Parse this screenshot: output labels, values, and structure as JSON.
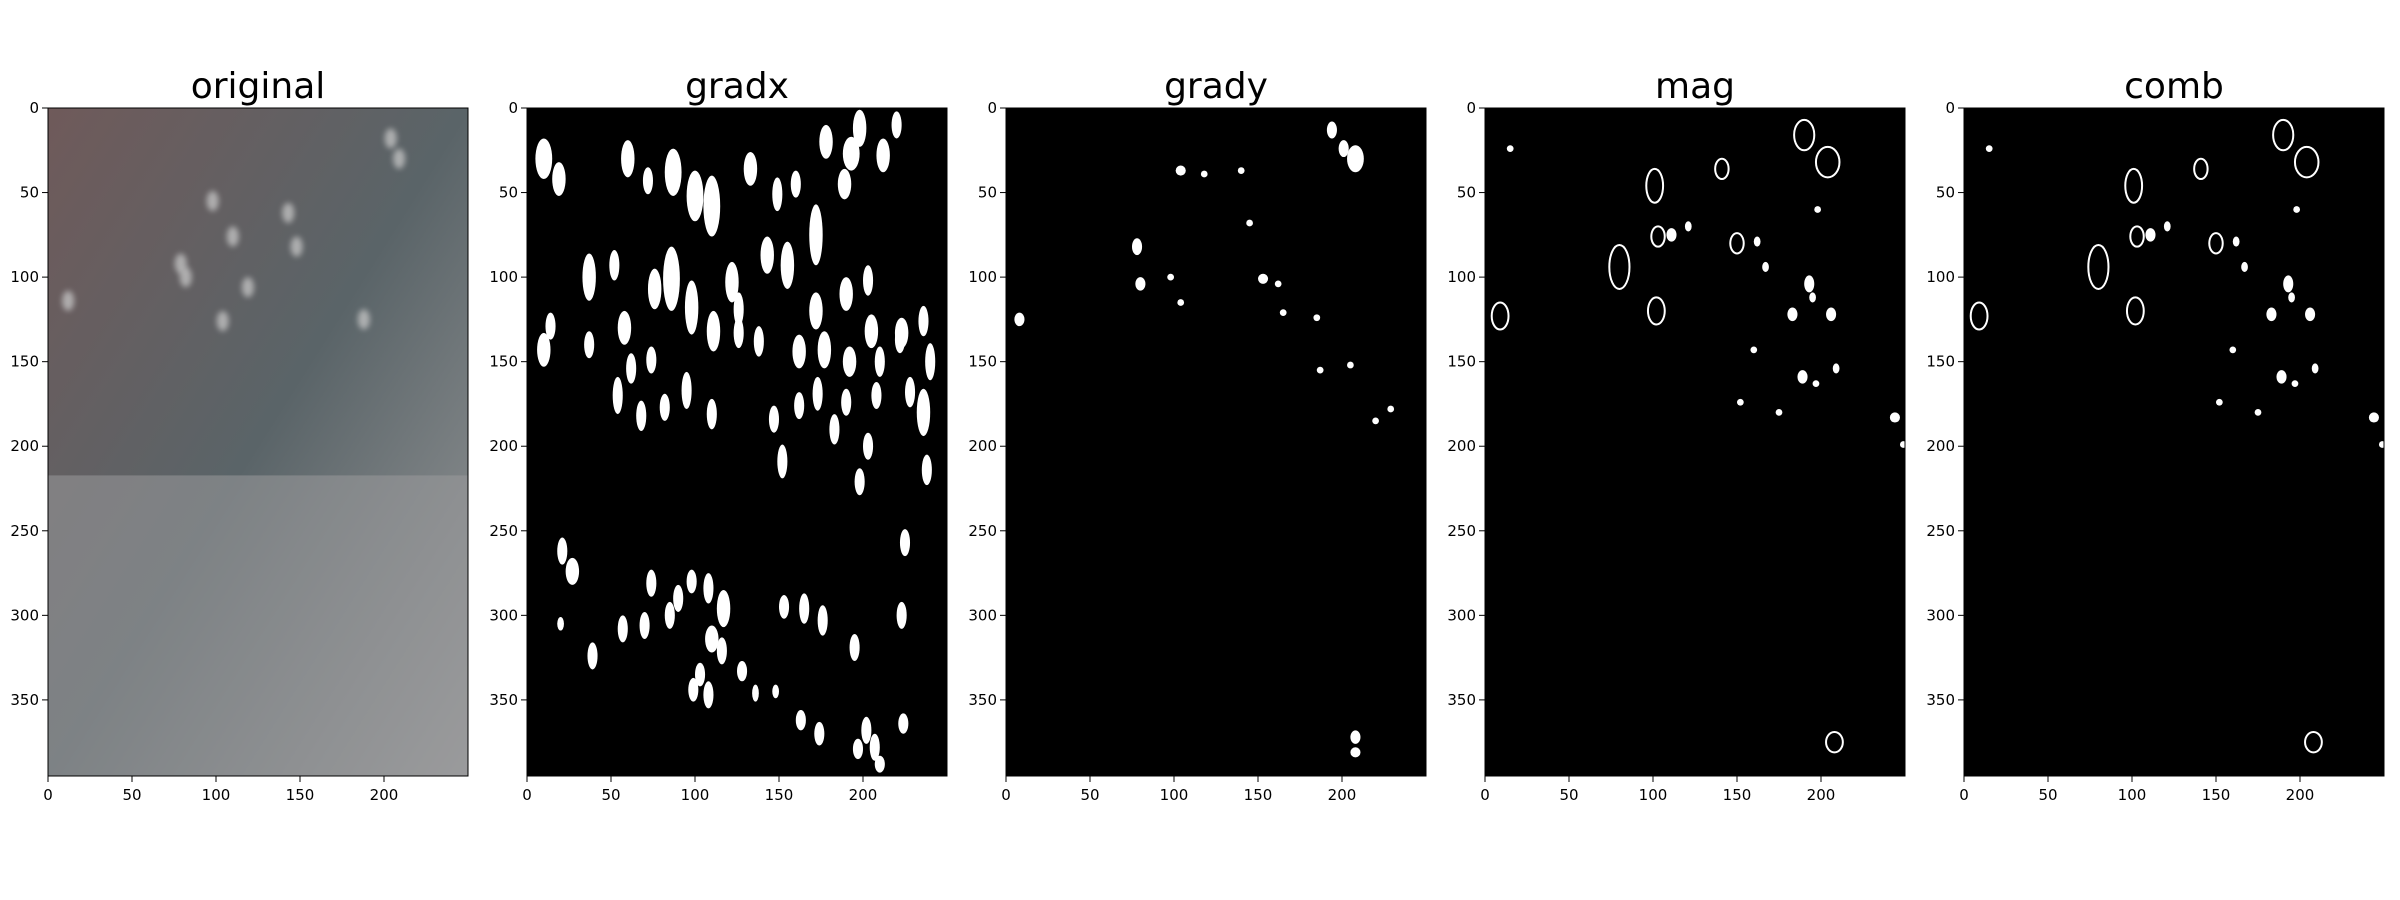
{
  "chart_data": [
    {
      "type": "image",
      "title": "original",
      "kind": "photo",
      "xticks": [
        0,
        50,
        100,
        150,
        200
      ],
      "yticks": [
        0,
        50,
        100,
        150,
        200,
        250,
        300,
        350
      ],
      "xlim": [
        0,
        250
      ],
      "ylim": [
        395,
        0
      ],
      "colors": {
        "top": "#6f5a5a",
        "middle": "#5a6468",
        "bottom": "#9a9b9c",
        "highlight": "#c8c8c8"
      },
      "bright_spots": [
        {
          "x": 204,
          "y": 18
        },
        {
          "x": 209,
          "y": 30
        },
        {
          "x": 79,
          "y": 92
        },
        {
          "x": 82,
          "y": 100
        },
        {
          "x": 12,
          "y": 114
        },
        {
          "x": 110,
          "y": 76
        },
        {
          "x": 148,
          "y": 82
        },
        {
          "x": 98,
          "y": 55
        },
        {
          "x": 143,
          "y": 62
        },
        {
          "x": 188,
          "y": 125
        },
        {
          "x": 104,
          "y": 126
        },
        {
          "x": 119,
          "y": 106
        }
      ]
    },
    {
      "type": "image",
      "title": "gradx",
      "kind": "binary",
      "xticks": [
        0,
        50,
        100,
        150,
        200
      ],
      "yticks": [
        0,
        50,
        100,
        150,
        200,
        250,
        300,
        350
      ],
      "xlim": [
        0,
        250
      ],
      "ylim": [
        395,
        0
      ],
      "blobs": [
        [
          10,
          30,
          5,
          12
        ],
        [
          19,
          42,
          4,
          10
        ],
        [
          60,
          30,
          4,
          11
        ],
        [
          72,
          43,
          3,
          8
        ],
        [
          87,
          38,
          5,
          14
        ],
        [
          100,
          52,
          5,
          15
        ],
        [
          110,
          58,
          5,
          18
        ],
        [
          133,
          36,
          4,
          10
        ],
        [
          149,
          51,
          3,
          10
        ],
        [
          160,
          45,
          3,
          8
        ],
        [
          172,
          75,
          4,
          18
        ],
        [
          189,
          45,
          4,
          9
        ],
        [
          198,
          12,
          4,
          11
        ],
        [
          193,
          27,
          5,
          10
        ],
        [
          212,
          28,
          4,
          10
        ],
        [
          178,
          20,
          4,
          10
        ],
        [
          220,
          10,
          3,
          8
        ],
        [
          37,
          100,
          4,
          14
        ],
        [
          52,
          93,
          3,
          9
        ],
        [
          58,
          130,
          4,
          10
        ],
        [
          76,
          107,
          4,
          12
        ],
        [
          86,
          101,
          5,
          19
        ],
        [
          98,
          118,
          4,
          16
        ],
        [
          122,
          103,
          4,
          12
        ],
        [
          126,
          119,
          3,
          10
        ],
        [
          143,
          87,
          4,
          11
        ],
        [
          155,
          93,
          4,
          14
        ],
        [
          172,
          120,
          4,
          11
        ],
        [
          190,
          110,
          4,
          10
        ],
        [
          203,
          102,
          3,
          9
        ],
        [
          205,
          132,
          4,
          10
        ],
        [
          223,
          133,
          4,
          9
        ],
        [
          236,
          126,
          3,
          9
        ],
        [
          10,
          143,
          4,
          10
        ],
        [
          14,
          129,
          3,
          8
        ],
        [
          37,
          140,
          3,
          8
        ],
        [
          62,
          154,
          3,
          9
        ],
        [
          74,
          149,
          3,
          8
        ],
        [
          111,
          132,
          4,
          12
        ],
        [
          126,
          133,
          3,
          9
        ],
        [
          138,
          138,
          3,
          9
        ],
        [
          162,
          144,
          4,
          10
        ],
        [
          177,
          143,
          4,
          11
        ],
        [
          192,
          150,
          4,
          9
        ],
        [
          210,
          150,
          3,
          9
        ],
        [
          222,
          137,
          3,
          8
        ],
        [
          54,
          170,
          3,
          11
        ],
        [
          68,
          182,
          3,
          9
        ],
        [
          82,
          177,
          3,
          8
        ],
        [
          95,
          167,
          3,
          11
        ],
        [
          110,
          181,
          3,
          9
        ],
        [
          162,
          176,
          3,
          8
        ],
        [
          173,
          169,
          3,
          10
        ],
        [
          190,
          174,
          3,
          8
        ],
        [
          208,
          170,
          3,
          8
        ],
        [
          228,
          168,
          3,
          9
        ],
        [
          236,
          180,
          4,
          14
        ],
        [
          240,
          150,
          3,
          11
        ],
        [
          147,
          184,
          3,
          8
        ],
        [
          183,
          190,
          3,
          9
        ],
        [
          203,
          200,
          3,
          8
        ],
        [
          238,
          214,
          3,
          9
        ],
        [
          225,
          257,
          3,
          8
        ],
        [
          152,
          209,
          3,
          10
        ],
        [
          198,
          221,
          3,
          8
        ],
        [
          21,
          262,
          3,
          8
        ],
        [
          27,
          274,
          4,
          8
        ],
        [
          74,
          281,
          3,
          8
        ],
        [
          90,
          290,
          3,
          8
        ],
        [
          98,
          280,
          3,
          7
        ],
        [
          108,
          284,
          3,
          9
        ],
        [
          117,
          296,
          4,
          11
        ],
        [
          70,
          306,
          3,
          8
        ],
        [
          85,
          300,
          3,
          8
        ],
        [
          110,
          314,
          4,
          8
        ],
        [
          116,
          321,
          3,
          8
        ],
        [
          103,
          335,
          3,
          7
        ],
        [
          20,
          305,
          2,
          4
        ],
        [
          39,
          324,
          3,
          8
        ],
        [
          57,
          308,
          3,
          8
        ],
        [
          99,
          344,
          3,
          7
        ],
        [
          108,
          347,
          3,
          8
        ],
        [
          128,
          333,
          3,
          6
        ],
        [
          153,
          295,
          3,
          7
        ],
        [
          165,
          296,
          3,
          9
        ],
        [
          176,
          303,
          3,
          9
        ],
        [
          223,
          300,
          3,
          8
        ],
        [
          195,
          319,
          3,
          8
        ],
        [
          163,
          362,
          3,
          6
        ],
        [
          174,
          370,
          3,
          7
        ],
        [
          202,
          368,
          3,
          8
        ],
        [
          207,
          378,
          3,
          8
        ],
        [
          197,
          379,
          3,
          6
        ],
        [
          210,
          388,
          3,
          5
        ],
        [
          224,
          364,
          3,
          6
        ],
        [
          136,
          346,
          2,
          5
        ],
        [
          148,
          345,
          2,
          4
        ]
      ]
    },
    {
      "type": "image",
      "title": "grady",
      "kind": "binary",
      "xticks": [
        0,
        50,
        100,
        150,
        200
      ],
      "yticks": [
        0,
        50,
        100,
        150,
        200,
        250,
        300,
        350
      ],
      "xlim": [
        0,
        250
      ],
      "ylim": [
        395,
        0
      ],
      "blobs": [
        [
          194,
          13,
          3,
          5
        ],
        [
          201,
          24,
          3,
          5
        ],
        [
          208,
          30,
          5,
          8
        ],
        [
          104,
          37,
          3,
          3
        ],
        [
          118,
          39,
          2,
          2
        ],
        [
          140,
          37,
          2,
          2
        ],
        [
          78,
          82,
          3,
          5
        ],
        [
          80,
          104,
          3,
          4
        ],
        [
          104,
          115,
          2,
          2
        ],
        [
          153,
          101,
          3,
          3
        ],
        [
          162,
          104,
          2,
          2
        ],
        [
          165,
          121,
          2,
          2
        ],
        [
          98,
          100,
          2,
          2
        ],
        [
          8,
          125,
          3,
          4
        ],
        [
          185,
          124,
          2,
          2
        ],
        [
          205,
          152,
          2,
          2
        ],
        [
          208,
          372,
          3,
          4
        ],
        [
          208,
          381,
          3,
          3
        ],
        [
          229,
          178,
          2,
          2
        ],
        [
          220,
          185,
          2,
          2
        ],
        [
          187,
          155,
          2,
          2
        ],
        [
          145,
          68,
          2,
          2
        ]
      ]
    },
    {
      "type": "image",
      "title": "mag",
      "kind": "binary-edges",
      "xticks": [
        0,
        50,
        100,
        150,
        200
      ],
      "yticks": [
        0,
        50,
        100,
        150,
        200,
        250,
        300,
        350
      ],
      "xlim": [
        0,
        250
      ],
      "ylim": [
        395,
        0
      ],
      "blobs": [
        [
          190,
          16,
          6,
          9
        ],
        [
          204,
          32,
          7,
          9
        ],
        [
          101,
          46,
          5,
          10
        ],
        [
          141,
          36,
          4,
          6
        ],
        [
          80,
          94,
          6,
          13
        ],
        [
          103,
          76,
          4,
          6
        ],
        [
          111,
          75,
          3,
          4
        ],
        [
          121,
          70,
          2,
          3
        ],
        [
          150,
          80,
          4,
          6
        ],
        [
          162,
          79,
          2,
          3
        ],
        [
          167,
          94,
          2,
          3
        ],
        [
          183,
          122,
          3,
          4
        ],
        [
          193,
          104,
          3,
          5
        ],
        [
          195,
          112,
          2,
          3
        ],
        [
          206,
          122,
          3,
          4
        ],
        [
          209,
          154,
          2,
          3
        ],
        [
          189,
          159,
          3,
          4
        ],
        [
          197,
          163,
          2,
          2
        ],
        [
          160,
          143,
          2,
          2
        ],
        [
          244,
          183,
          3,
          3
        ],
        [
          249,
          199,
          2,
          2
        ],
        [
          9,
          123,
          5,
          8
        ],
        [
          15,
          24,
          2,
          2
        ],
        [
          102,
          120,
          5,
          8
        ],
        [
          208,
          375,
          5,
          6
        ],
        [
          175,
          180,
          2,
          2
        ],
        [
          152,
          174,
          2,
          2
        ],
        [
          198,
          60,
          2,
          2
        ]
      ]
    },
    {
      "type": "image",
      "title": "comb",
      "kind": "binary-edges",
      "xticks": [
        0,
        50,
        100,
        150,
        200
      ],
      "yticks": [
        0,
        50,
        100,
        150,
        200,
        250,
        300,
        350
      ],
      "xlim": [
        0,
        250
      ],
      "ylim": [
        395,
        0
      ],
      "blobs": [
        [
          190,
          16,
          6,
          9
        ],
        [
          204,
          32,
          7,
          9
        ],
        [
          101,
          46,
          5,
          10
        ],
        [
          141,
          36,
          4,
          6
        ],
        [
          80,
          94,
          6,
          13
        ],
        [
          103,
          76,
          4,
          6
        ],
        [
          111,
          75,
          3,
          4
        ],
        [
          121,
          70,
          2,
          3
        ],
        [
          150,
          80,
          4,
          6
        ],
        [
          162,
          79,
          2,
          3
        ],
        [
          167,
          94,
          2,
          3
        ],
        [
          183,
          122,
          3,
          4
        ],
        [
          193,
          104,
          3,
          5
        ],
        [
          195,
          112,
          2,
          3
        ],
        [
          206,
          122,
          3,
          4
        ],
        [
          209,
          154,
          2,
          3
        ],
        [
          189,
          159,
          3,
          4
        ],
        [
          197,
          163,
          2,
          2
        ],
        [
          160,
          143,
          2,
          2
        ],
        [
          244,
          183,
          3,
          3
        ],
        [
          249,
          199,
          2,
          2
        ],
        [
          9,
          123,
          5,
          8
        ],
        [
          15,
          24,
          2,
          2
        ],
        [
          102,
          120,
          5,
          8
        ],
        [
          208,
          375,
          5,
          6
        ],
        [
          175,
          180,
          2,
          2
        ],
        [
          152,
          174,
          2,
          2
        ],
        [
          198,
          60,
          2,
          2
        ]
      ]
    }
  ]
}
